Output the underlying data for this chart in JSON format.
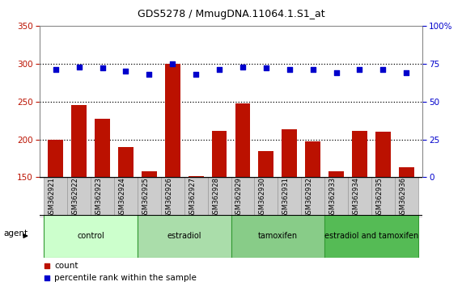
{
  "title": "GDS5278 / MmugDNA.11064.1.S1_at",
  "samples": [
    "GSM362921",
    "GSM362922",
    "GSM362923",
    "GSM362924",
    "GSM362925",
    "GSM362926",
    "GSM362927",
    "GSM362928",
    "GSM362929",
    "GSM362930",
    "GSM362931",
    "GSM362932",
    "GSM362933",
    "GSM362934",
    "GSM362935",
    "GSM362936"
  ],
  "counts": [
    200,
    245,
    227,
    190,
    158,
    300,
    152,
    211,
    247,
    185,
    213,
    197,
    158,
    211,
    210,
    163
  ],
  "percentiles": [
    71,
    73,
    72,
    70,
    68,
    75,
    68,
    71,
    73,
    72,
    71,
    71,
    69,
    71,
    71,
    69
  ],
  "groups": [
    {
      "label": "control",
      "start": 0,
      "end": 4,
      "color": "#ccffcc"
    },
    {
      "label": "estradiol",
      "start": 4,
      "end": 8,
      "color": "#aaddaa"
    },
    {
      "label": "tamoxifen",
      "start": 8,
      "end": 12,
      "color": "#88cc88"
    },
    {
      "label": "estradiol and tamoxifen",
      "start": 12,
      "end": 16,
      "color": "#55bb55"
    }
  ],
  "bar_color": "#bb1100",
  "dot_color": "#0000cc",
  "ylim_left": [
    150,
    350
  ],
  "ylim_right": [
    0,
    100
  ],
  "yticks_left": [
    150,
    200,
    250,
    300,
    350
  ],
  "yticks_right": [
    0,
    25,
    50,
    75,
    100
  ],
  "grid_lines": [
    200,
    250,
    300
  ],
  "agent_label": "agent"
}
